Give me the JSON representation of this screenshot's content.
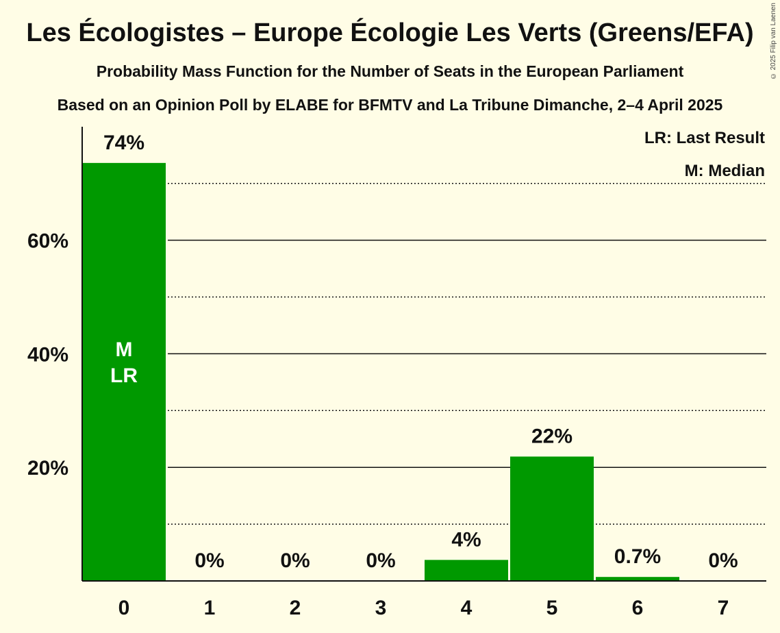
{
  "header": {
    "title": "Les Écologistes – Europe Écologie Les Verts (Greens/EFA)",
    "subtitle": "Probability Mass Function for the Number of Seats in the European Parliament",
    "source": "Based on an Opinion Poll by ELABE for BFMTV and La Tribune Dimanche, 2–4 April 2025",
    "copyright": "© 2025 Filip van Laenen"
  },
  "chart_data": {
    "type": "bar",
    "title": "Les Écologistes – Europe Écologie Les Verts (Greens/EFA)",
    "xlabel": "",
    "ylabel": "",
    "categories": [
      "0",
      "1",
      "2",
      "3",
      "4",
      "5",
      "6",
      "7"
    ],
    "values": [
      73.6,
      0,
      0,
      0,
      3.7,
      21.9,
      0.7,
      0
    ],
    "value_labels": [
      "74%",
      "0%",
      "0%",
      "0%",
      "4%",
      "22%",
      "0.7%",
      "0%"
    ],
    "ylim": [
      0,
      80
    ],
    "y_ticks_major": [
      20,
      40,
      60
    ],
    "y_tick_labels": [
      "20%",
      "40%",
      "60%"
    ],
    "y_ticks_minor": [
      10,
      30,
      50,
      70
    ],
    "bar_color": "#009900",
    "median_seat": "0",
    "last_result_seat": "0",
    "median_marker": "M",
    "last_result_marker": "LR",
    "legend": [
      "LR: Last Result",
      "M: Median"
    ],
    "legend_position": "top-right"
  }
}
